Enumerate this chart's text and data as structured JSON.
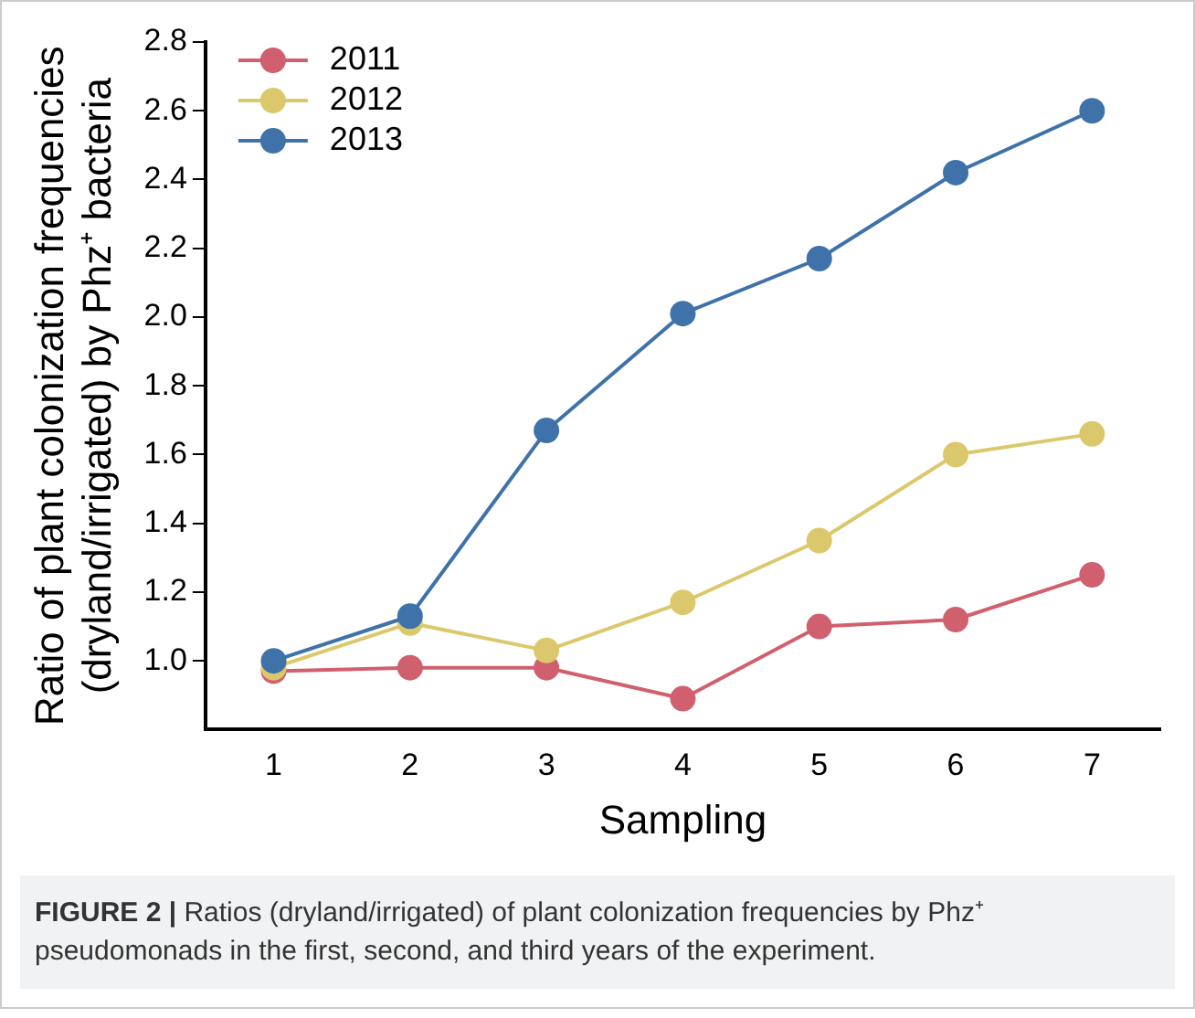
{
  "chart_data": {
    "type": "line",
    "xlabel": "Sampling",
    "ylabel": "Ratio of plant colonization frequencies\n(dryland/irrigated) by Phz⁺ bacteria",
    "categories": [
      "1",
      "2",
      "3",
      "4",
      "5",
      "6",
      "7"
    ],
    "series": [
      {
        "name": "2011",
        "color": "#d0606e",
        "values": [
          0.97,
          0.98,
          0.98,
          0.89,
          1.1,
          1.12,
          1.25
        ]
      },
      {
        "name": "2012",
        "color": "#dcc86c",
        "values": [
          0.98,
          1.11,
          1.03,
          1.17,
          1.35,
          1.6,
          1.66
        ]
      },
      {
        "name": "2013",
        "color": "#3f72a8",
        "values": [
          1.0,
          1.13,
          1.67,
          2.01,
          2.17,
          2.42,
          2.6
        ]
      }
    ],
    "ylim": [
      0.8,
      2.8
    ],
    "yticks": [
      {
        "value": 1,
        "label": "1.0"
      },
      {
        "value": 1.2,
        "label": "1.2"
      },
      {
        "value": 1.4,
        "label": "1.4"
      },
      {
        "value": 1.6,
        "label": "1.6"
      },
      {
        "value": 1.8,
        "label": "1.8"
      },
      {
        "value": 2,
        "label": "2.0"
      },
      {
        "value": 2.2,
        "label": "2.2"
      },
      {
        "value": 2.4,
        "label": "2.4"
      },
      {
        "value": 2.6,
        "label": "2.6"
      },
      {
        "value": 2.8,
        "label": "2.8"
      }
    ],
    "grid": false,
    "legend": "top left",
    "marker": "circle",
    "line_style": "solid",
    "annotations": [
      "FIGURE 2 | Ratios (dryland/irrigated) of plant colonization frequencies by Phz⁺ pseudomonads in the first, second, and third years of the experiment."
    ]
  }
}
